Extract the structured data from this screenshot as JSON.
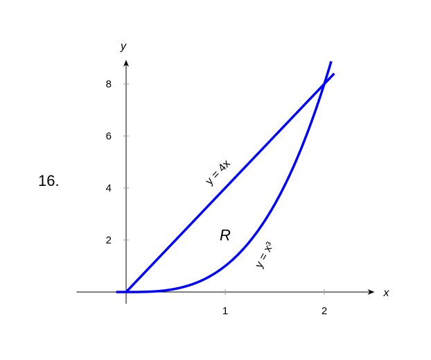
{
  "problem_number": "16.",
  "chart_data": {
    "type": "line",
    "xlabel": "x",
    "ylabel": "y",
    "xlim": [
      -0.5,
      2.5
    ],
    "ylim": [
      -0.45,
      8.9
    ],
    "x_ticks": [
      1,
      2
    ],
    "y_ticks": [
      2,
      4,
      6,
      8
    ],
    "grid": false,
    "series": [
      {
        "name": "y = 4x",
        "expression": "4x",
        "domain": [
          0,
          2.1
        ],
        "color": "#0000ff"
      },
      {
        "name": "y = x³",
        "expression": "x^3",
        "domain": [
          -0.1,
          2.07
        ],
        "color": "#0000ff"
      }
    ],
    "annotations": [
      {
        "text": "R",
        "x": 1.0,
        "y": 2.2
      }
    ]
  }
}
